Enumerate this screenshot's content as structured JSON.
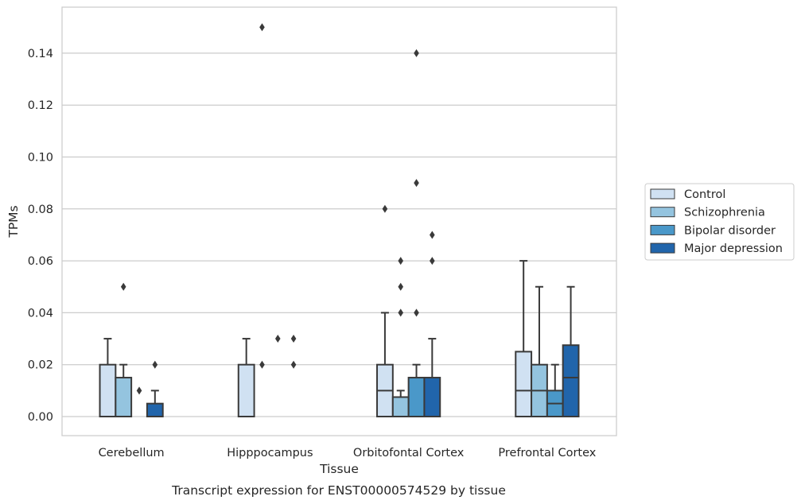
{
  "caption": "Transcript expression for ENST00000574529 by tissue",
  "chart_data": {
    "type": "box",
    "xlabel": "Tissue",
    "ylabel": "TPMs",
    "ylim": [
      -0.007,
      0.157
    ],
    "yticks": [
      0.0,
      0.02,
      0.04,
      0.06,
      0.08,
      0.1,
      0.12,
      0.14
    ],
    "ytick_labels": [
      "0.00",
      "0.02",
      "0.04",
      "0.06",
      "0.08",
      "0.10",
      "0.12",
      "0.14"
    ],
    "grid": "horizontal",
    "legend_position": "right",
    "categories": [
      "Cerebellum",
      "Hipppocampus",
      "Orbitofontal Cortex",
      "Prefrontal Cortex"
    ],
    "series": [
      {
        "name": "Control",
        "color": "#d0e1f2",
        "boxes": [
          {
            "q1": 0.0,
            "median": 0.0,
            "q3": 0.02,
            "whisker_low": 0.0,
            "whisker_high": 0.03,
            "outliers": []
          },
          {
            "q1": 0.0,
            "median": 0.0,
            "q3": 0.02,
            "whisker_low": 0.0,
            "whisker_high": 0.03,
            "outliers": []
          },
          {
            "q1": 0.0,
            "median": 0.01,
            "q3": 0.02,
            "whisker_low": 0.0,
            "whisker_high": 0.04,
            "outliers": [
              0.08
            ]
          },
          {
            "q1": 0.0,
            "median": 0.01,
            "q3": 0.025,
            "whisker_low": 0.0,
            "whisker_high": 0.06,
            "outliers": []
          }
        ]
      },
      {
        "name": "Schizophrenia",
        "color": "#94c4df",
        "boxes": [
          {
            "q1": 0.0,
            "median": 0.0,
            "q3": 0.015,
            "whisker_low": 0.0,
            "whisker_high": 0.02,
            "outliers": [
              0.05
            ]
          },
          {
            "q1": 0.0,
            "median": 0.0,
            "q3": 0.0,
            "whisker_low": 0.0,
            "whisker_high": 0.0,
            "outliers": [
              0.02,
              0.15
            ]
          },
          {
            "q1": 0.0,
            "median": 0.0,
            "q3": 0.0075,
            "whisker_low": 0.0,
            "whisker_high": 0.01,
            "outliers": [
              0.04,
              0.05,
              0.06
            ]
          },
          {
            "q1": 0.0,
            "median": 0.01,
            "q3": 0.02,
            "whisker_low": 0.0,
            "whisker_high": 0.05,
            "outliers": []
          }
        ]
      },
      {
        "name": "Bipolar disorder",
        "color": "#4a98c9",
        "boxes": [
          {
            "q1": 0.0,
            "median": 0.0,
            "q3": 0.0,
            "whisker_low": 0.0,
            "whisker_high": 0.0,
            "outliers": [
              0.01
            ]
          },
          {
            "q1": 0.0,
            "median": 0.0,
            "q3": 0.0,
            "whisker_low": 0.0,
            "whisker_high": 0.0,
            "outliers": [
              0.03
            ]
          },
          {
            "q1": 0.0,
            "median": 0.0,
            "q3": 0.015,
            "whisker_low": 0.0,
            "whisker_high": 0.02,
            "outliers": [
              0.04,
              0.09,
              0.14
            ]
          },
          {
            "q1": 0.0,
            "median": 0.005,
            "q3": 0.01,
            "whisker_low": 0.0,
            "whisker_high": 0.02,
            "outliers": []
          }
        ]
      },
      {
        "name": "Major depression",
        "color": "#2165ab",
        "boxes": [
          {
            "q1": 0.0,
            "median": 0.0,
            "q3": 0.005,
            "whisker_low": 0.0,
            "whisker_high": 0.01,
            "outliers": [
              0.02
            ]
          },
          {
            "q1": 0.0,
            "median": 0.0,
            "q3": 0.0,
            "whisker_low": 0.0,
            "whisker_high": 0.0,
            "outliers": [
              0.02,
              0.03
            ]
          },
          {
            "q1": 0.0,
            "median": 0.0,
            "q3": 0.015,
            "whisker_low": 0.0,
            "whisker_high": 0.03,
            "outliers": [
              0.06,
              0.07
            ]
          },
          {
            "q1": 0.0,
            "median": 0.015,
            "q3": 0.0275,
            "whisker_low": 0.0,
            "whisker_high": 0.05,
            "outliers": []
          }
        ]
      }
    ]
  }
}
